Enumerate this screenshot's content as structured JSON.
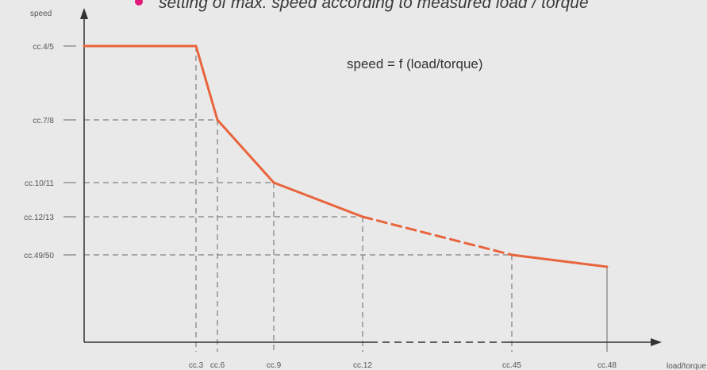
{
  "header": {
    "bullet_text": "setting of max. speed according to measured load / torque",
    "bullet_color": "#e0187a"
  },
  "chart_data": {
    "type": "line",
    "formula_label": "speed = f (load/torque)",
    "xlabel": "load/torque",
    "ylabel": "speed",
    "x_ticks": [
      "cc.3",
      "cc.6",
      "cc.9",
      "cc.12",
      "cc.45",
      "cc.48"
    ],
    "y_ticks": [
      "cc.4/5",
      "cc.7/8",
      "cc.10/11",
      "cc.12/13",
      "cc.49/50"
    ],
    "series": [
      {
        "color": "#e8643c",
        "points": [
          {
            "x": "start",
            "y": "cc.4/5"
          },
          {
            "x": "cc.3",
            "y": "cc.4/5"
          },
          {
            "x": "cc.6",
            "y": "cc.7/8"
          },
          {
            "x": "cc.9",
            "y": "cc.10/11"
          },
          {
            "x": "cc.12",
            "y": "cc.12/13"
          },
          {
            "x": "cc.45",
            "y": "cc.49/50"
          },
          {
            "x": "cc.48",
            "y": "end"
          }
        ],
        "dashed_segment": [
          "cc.12",
          "cc.45"
        ]
      }
    ],
    "gridlines": "dashed",
    "axis_color": "#333333",
    "grid_color": "#666666"
  }
}
